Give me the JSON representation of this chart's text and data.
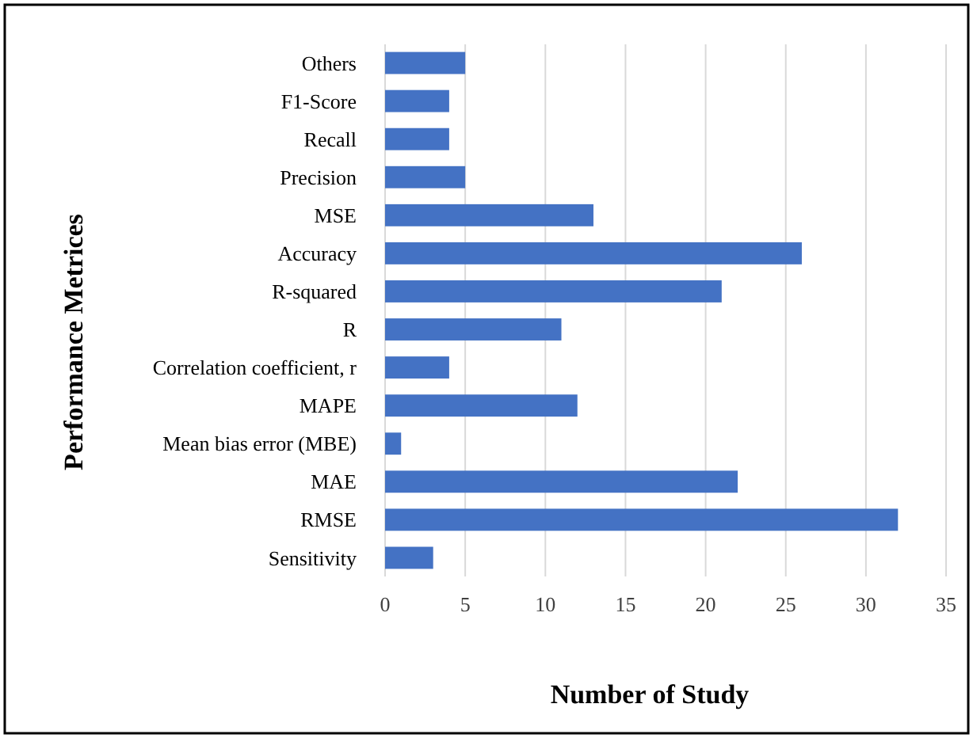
{
  "chart_data": {
    "type": "bar",
    "orientation": "horizontal",
    "xlabel": "Number of Study",
    "ylabel": "Performance Metrices",
    "categories": [
      "Others",
      "F1-Score",
      "Recall",
      "Precision",
      "MSE",
      "Accuracy",
      "R-squared",
      "R",
      "Correlation coefficient, r",
      "MAPE",
      "Mean bias error (MBE)",
      "MAE",
      "RMSE",
      "Sensitivity"
    ],
    "values": [
      5,
      4,
      4,
      5,
      13,
      26,
      21,
      11,
      4,
      12,
      1,
      22,
      32,
      3
    ],
    "color": "#4472c4",
    "xlim": [
      0,
      35
    ],
    "xticks": [
      0,
      5,
      10,
      15,
      20,
      25,
      30,
      35
    ],
    "grid": "x"
  }
}
